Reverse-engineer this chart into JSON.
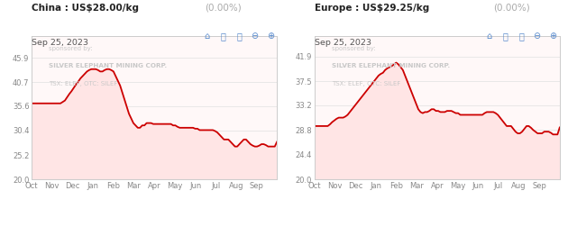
{
  "chart1": {
    "title_bold": "China : US$28.00/kg",
    "title_pct": "(0.00%)",
    "title_date": "Sep 25, 2023",
    "ylim": [
      20.0,
      50.5
    ],
    "yticks": [
      20.0,
      25.2,
      30.4,
      35.6,
      40.7,
      45.9
    ],
    "xtick_labels": [
      "Oct",
      "Nov",
      "Dec",
      "Jan",
      "Feb",
      "Mar",
      "Apr",
      "May",
      "Jun",
      "Jul",
      "Aug",
      "Sep"
    ],
    "sponsor_line1": "sponsored by:",
    "sponsor_line2": "SILVER ELEPHANT MINING CORP.",
    "sponsor_line3": "TSX: ELEF, OTC: SILEF",
    "x": [
      0,
      1,
      2,
      3,
      4,
      5,
      6,
      7,
      8,
      9,
      10,
      11,
      12,
      13,
      14,
      15,
      16,
      17,
      18,
      19,
      20,
      21,
      22,
      23,
      24,
      25,
      26,
      27,
      28,
      29,
      30,
      31,
      32,
      33,
      34,
      35,
      36,
      37,
      38,
      39,
      40,
      41,
      42,
      43,
      44,
      45,
      46,
      47,
      48,
      49,
      50,
      51,
      52,
      53,
      54,
      55,
      56,
      57,
      58,
      59,
      60,
      61,
      62,
      63,
      64,
      65,
      66,
      67,
      68,
      69,
      70,
      71,
      72,
      73,
      74,
      75,
      76,
      77,
      78,
      79,
      80,
      81,
      82,
      83,
      84,
      85,
      86,
      87,
      88,
      89,
      90,
      91,
      92,
      93,
      94,
      95,
      96,
      97,
      98,
      99,
      100,
      101,
      102,
      103,
      104,
      105,
      106,
      107,
      108,
      109,
      110,
      111
    ],
    "y": [
      36.2,
      36.2,
      36.2,
      36.2,
      36.2,
      36.2,
      36.2,
      36.2,
      36.2,
      36.2,
      36.2,
      36.2,
      36.2,
      36.2,
      36.5,
      36.8,
      37.5,
      38.2,
      38.8,
      39.5,
      40.2,
      40.8,
      41.5,
      42.0,
      42.5,
      43.0,
      43.3,
      43.5,
      43.5,
      43.5,
      43.3,
      43.0,
      43.0,
      43.3,
      43.5,
      43.5,
      43.3,
      43.0,
      42.0,
      41.0,
      40.0,
      38.5,
      37.0,
      35.5,
      34.0,
      33.0,
      32.0,
      31.5,
      31.0,
      31.0,
      31.5,
      31.5,
      32.0,
      32.0,
      32.0,
      31.8,
      31.8,
      31.8,
      31.8,
      31.8,
      31.8,
      31.8,
      31.8,
      31.8,
      31.5,
      31.5,
      31.2,
      31.0,
      31.0,
      31.0,
      31.0,
      31.0,
      31.0,
      31.0,
      30.8,
      30.8,
      30.5,
      30.5,
      30.5,
      30.5,
      30.5,
      30.5,
      30.5,
      30.3,
      30.0,
      29.5,
      29.0,
      28.5,
      28.5,
      28.5,
      28.0,
      27.5,
      27.0,
      27.0,
      27.5,
      28.0,
      28.5,
      28.5,
      28.0,
      27.5,
      27.2,
      27.0,
      27.0,
      27.2,
      27.5,
      27.5,
      27.3,
      27.0,
      27.0,
      27.0,
      27.0,
      28.0
    ],
    "line_color": "#cc0000",
    "fill_color": "#ffe5e5",
    "plot_bg": "#fff8f8",
    "grid_color": "#e0e0e0",
    "border_color": "#cccccc"
  },
  "chart2": {
    "title_bold": "Europe : US$29.25/kg",
    "title_pct": "(0.00%)",
    "title_date": "Sep 25, 2023",
    "ylim": [
      20.0,
      45.5
    ],
    "yticks": [
      20.0,
      24.4,
      28.8,
      33.2,
      37.5,
      41.9
    ],
    "xtick_labels": [
      "Oct",
      "Nov",
      "Dec",
      "Jan",
      "Feb",
      "Mar",
      "Apr",
      "May",
      "Jun",
      "Jul",
      "Aug",
      "Sep"
    ],
    "sponsor_line1": "sponsored by:",
    "sponsor_line2": "SILVER ELEPHANT MINING CORP.",
    "sponsor_line3": "TSX: ELEF, OTC: SILEF",
    "x": [
      0,
      1,
      2,
      3,
      4,
      5,
      6,
      7,
      8,
      9,
      10,
      11,
      12,
      13,
      14,
      15,
      16,
      17,
      18,
      19,
      20,
      21,
      22,
      23,
      24,
      25,
      26,
      27,
      28,
      29,
      30,
      31,
      32,
      33,
      34,
      35,
      36,
      37,
      38,
      39,
      40,
      41,
      42,
      43,
      44,
      45,
      46,
      47,
      48,
      49,
      50,
      51,
      52,
      53,
      54,
      55,
      56,
      57,
      58,
      59,
      60,
      61,
      62,
      63,
      64,
      65,
      66,
      67,
      68,
      69,
      70,
      71,
      72,
      73,
      74,
      75,
      76,
      77,
      78,
      79,
      80,
      81,
      82,
      83,
      84,
      85,
      86,
      87,
      88,
      89,
      90,
      91,
      92,
      93,
      94,
      95,
      96,
      97,
      98,
      99,
      100,
      101,
      102,
      103,
      104,
      105,
      106,
      107,
      108,
      109,
      110,
      111
    ],
    "y": [
      29.5,
      29.5,
      29.5,
      29.5,
      29.5,
      29.5,
      29.5,
      29.8,
      30.2,
      30.5,
      30.8,
      31.0,
      31.0,
      31.0,
      31.2,
      31.5,
      32.0,
      32.5,
      33.0,
      33.5,
      34.0,
      34.5,
      35.0,
      35.5,
      36.0,
      36.5,
      37.0,
      37.5,
      38.0,
      38.5,
      38.8,
      39.0,
      39.5,
      39.8,
      40.0,
      40.2,
      40.5,
      40.8,
      40.5,
      40.0,
      39.5,
      38.5,
      37.5,
      36.5,
      35.5,
      34.5,
      33.5,
      32.5,
      32.0,
      31.8,
      32.0,
      32.0,
      32.2,
      32.5,
      32.5,
      32.2,
      32.2,
      32.0,
      32.0,
      32.0,
      32.2,
      32.2,
      32.2,
      32.0,
      31.8,
      31.8,
      31.5,
      31.5,
      31.5,
      31.5,
      31.5,
      31.5,
      31.5,
      31.5,
      31.5,
      31.5,
      31.5,
      31.8,
      32.0,
      32.0,
      32.0,
      32.0,
      31.8,
      31.5,
      31.0,
      30.5,
      30.0,
      29.5,
      29.5,
      29.5,
      29.0,
      28.5,
      28.2,
      28.2,
      28.5,
      29.0,
      29.5,
      29.5,
      29.2,
      28.8,
      28.5,
      28.2,
      28.2,
      28.2,
      28.5,
      28.5,
      28.5,
      28.3,
      28.0,
      28.0,
      28.0,
      29.25
    ],
    "line_color": "#cc0000",
    "fill_color": "#ffe5e5",
    "plot_bg": "#fff8f8",
    "grid_color": "#e0e0e0",
    "border_color": "#cccccc"
  },
  "fig_bg": "#ffffff",
  "title_bold_color": "#222222",
  "title_pct_color": "#aaaaaa",
  "date_color": "#555555",
  "sponsor_color": "#c8c8c8",
  "axis_label_color": "#888888"
}
